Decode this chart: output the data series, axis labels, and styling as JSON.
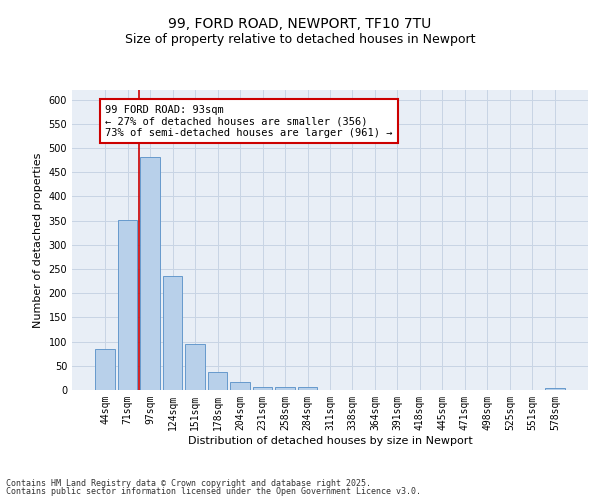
{
  "title_line1": "99, FORD ROAD, NEWPORT, TF10 7TU",
  "title_line2": "Size of property relative to detached houses in Newport",
  "xlabel": "Distribution of detached houses by size in Newport",
  "ylabel": "Number of detached properties",
  "categories": [
    "44sqm",
    "71sqm",
    "97sqm",
    "124sqm",
    "151sqm",
    "178sqm",
    "204sqm",
    "231sqm",
    "258sqm",
    "284sqm",
    "311sqm",
    "338sqm",
    "364sqm",
    "391sqm",
    "418sqm",
    "445sqm",
    "471sqm",
    "498sqm",
    "525sqm",
    "551sqm",
    "578sqm"
  ],
  "values": [
    85,
    352,
    481,
    236,
    96,
    37,
    16,
    7,
    6,
    7,
    0,
    0,
    0,
    0,
    0,
    0,
    0,
    0,
    0,
    0,
    4
  ],
  "bar_color": "#b8d0ea",
  "bar_edge_color": "#6699cc",
  "grid_color": "#c8d4e4",
  "background_color": "#e8eef6",
  "annotation_box_text": "99 FORD ROAD: 93sqm\n← 27% of detached houses are smaller (356)\n73% of semi-detached houses are larger (961) →",
  "annotation_box_color": "#cc0000",
  "vline_x": 1.5,
  "vline_color": "#cc0000",
  "ylim": [
    0,
    620
  ],
  "yticks": [
    0,
    50,
    100,
    150,
    200,
    250,
    300,
    350,
    400,
    450,
    500,
    550,
    600
  ],
  "footnote_line1": "Contains HM Land Registry data © Crown copyright and database right 2025.",
  "footnote_line2": "Contains public sector information licensed under the Open Government Licence v3.0.",
  "title_fontsize": 10,
  "subtitle_fontsize": 9,
  "axis_label_fontsize": 8,
  "tick_fontsize": 7,
  "annotation_fontsize": 7.5,
  "footnote_fontsize": 6
}
